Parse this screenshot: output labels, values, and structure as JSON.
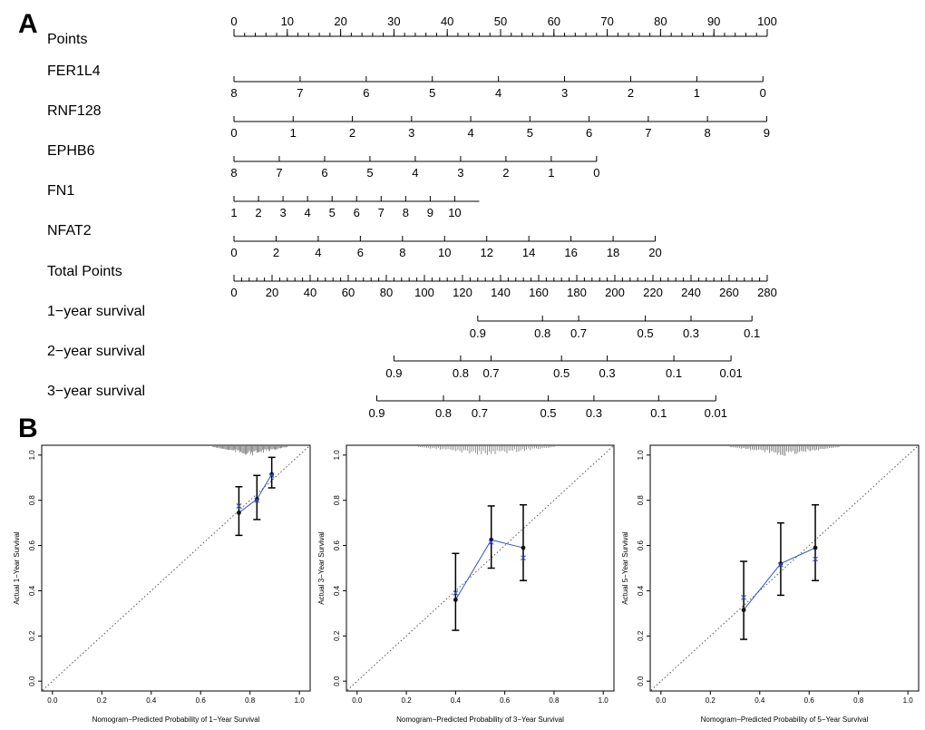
{
  "panel_labels": {
    "a": "A",
    "b": "B"
  },
  "chart_data": [
    {
      "type": "nomogram",
      "panel": "A",
      "points_scale": {
        "label": "Points",
        "min": 0,
        "max": 100,
        "major": [
          0,
          10,
          20,
          30,
          40,
          50,
          60,
          70,
          80,
          90,
          100
        ],
        "minor_step": 2
      },
      "variables": [
        {
          "name": "FER1L4",
          "ticks": [
            "8",
            "7",
            "6",
            "5",
            "4",
            "3",
            "2",
            "1",
            "0"
          ],
          "points": [
            0,
            12.4,
            24.8,
            37.2,
            49.6,
            62,
            74.4,
            86.8,
            99.2
          ]
        },
        {
          "name": "RNF128",
          "ticks": [
            "0",
            "1",
            "2",
            "3",
            "4",
            "5",
            "6",
            "7",
            "8",
            "9"
          ],
          "points": [
            0,
            11.1,
            22.2,
            33.3,
            44.4,
            55.5,
            66.6,
            77.7,
            88.8,
            99.9
          ]
        },
        {
          "name": "EPHB6",
          "ticks": [
            "8",
            "7",
            "6",
            "5",
            "4",
            "3",
            "2",
            "1",
            "0"
          ],
          "points": [
            0,
            8.5,
            17,
            25.5,
            34,
            42.5,
            51,
            59.5,
            68
          ]
        },
        {
          "name": "FN1",
          "ticks": [
            "1",
            "2",
            "3",
            "4",
            "5",
            "6",
            "7",
            "8",
            "9",
            "10"
          ],
          "points": [
            0,
            4.6,
            9.2,
            13.8,
            18.4,
            23,
            27.6,
            32.2,
            36.8,
            41.4
          ],
          "axis_end": 46
        },
        {
          "name": "NFAT2",
          "ticks": [
            "0",
            "2",
            "4",
            "6",
            "8",
            "10",
            "12",
            "14",
            "16",
            "18",
            "20"
          ],
          "points": [
            0,
            7.9,
            15.8,
            23.7,
            31.6,
            39.5,
            47.4,
            55.3,
            63.2,
            71.1,
            79
          ]
        }
      ],
      "total_points": {
        "label": "Total Points",
        "min": 0,
        "max": 280,
        "major": [
          0,
          20,
          40,
          60,
          80,
          100,
          120,
          140,
          160,
          180,
          200,
          220,
          240,
          260,
          280
        ],
        "minor_step": 4
      },
      "survival_axes": [
        {
          "name": "1−year survival",
          "ticks": [
            "0.9",
            "0.8",
            "0.7",
            "0.5",
            "0.3",
            "0.1"
          ],
          "total_points": [
            128,
            162,
            181,
            216,
            240,
            272
          ]
        },
        {
          "name": "2−year survival",
          "ticks": [
            "0.9",
            "0.8",
            "0.7",
            "0.5",
            "0.3",
            "0.1",
            "0.01"
          ],
          "total_points": [
            84,
            119,
            135,
            172,
            196,
            231,
            261
          ]
        },
        {
          "name": "3−year survival",
          "ticks": [
            "0.9",
            "0.8",
            "0.7",
            "0.5",
            "0.3",
            "0.1",
            "0.01"
          ],
          "total_points": [
            75,
            110,
            129,
            165,
            189,
            223,
            253
          ]
        }
      ]
    },
    {
      "type": "calibration",
      "panel": "B1",
      "xlabel": "Nomogram−Predicted Probability of 1−Year Survival",
      "ylabel": "Actual 1−Year Survival",
      "xlim": [
        0,
        1
      ],
      "ylim": [
        0,
        1
      ],
      "x_ticks": [
        "0.0",
        "0.2",
        "0.4",
        "0.6",
        "0.8",
        "1.0"
      ],
      "y_ticks": [
        "0.0",
        "0.2",
        "0.4",
        "0.6",
        "0.8",
        "1.0"
      ],
      "points": [
        {
          "x": 0.755,
          "y": 0.745,
          "lower": 0.645,
          "upper": 0.86,
          "corrected": 0.775
        },
        {
          "x": 0.828,
          "y": 0.805,
          "lower": 0.715,
          "upper": 0.91,
          "corrected": 0.8
        },
        {
          "x": 0.888,
          "y": 0.915,
          "lower": 0.855,
          "upper": 0.99,
          "corrected": 0.91
        }
      ],
      "rug_range": [
        0.65,
        0.95
      ]
    },
    {
      "type": "calibration",
      "panel": "B2",
      "xlabel": "Nomogram−Predicted Probability of 3−Year Survival",
      "ylabel": "Actual 3−Year Survival",
      "xlim": [
        0,
        1
      ],
      "ylim": [
        0,
        1
      ],
      "x_ticks": [
        "0.0",
        "0.2",
        "0.4",
        "0.6",
        "0.8",
        "1.0"
      ],
      "y_ticks": [
        "0.0",
        "0.2",
        "0.4",
        "0.6",
        "0.8",
        "1.0"
      ],
      "points": [
        {
          "x": 0.4,
          "y": 0.36,
          "lower": 0.225,
          "upper": 0.565,
          "corrected": 0.39
        },
        {
          "x": 0.545,
          "y": 0.625,
          "lower": 0.5,
          "upper": 0.775,
          "corrected": 0.615
        },
        {
          "x": 0.675,
          "y": 0.59,
          "lower": 0.445,
          "upper": 0.78,
          "corrected": 0.545
        }
      ],
      "rug_range": [
        0.25,
        0.8
      ]
    },
    {
      "type": "calibration",
      "panel": "B3",
      "xlabel": "Nomogram−Predicted Probability of 5−Year Survival",
      "ylabel": "Actual 5−Year Survival",
      "xlim": [
        0,
        1
      ],
      "ylim": [
        0,
        1
      ],
      "x_ticks": [
        "0.0",
        "0.2",
        "0.4",
        "0.6",
        "0.8",
        "1.0"
      ],
      "y_ticks": [
        "0.0",
        "0.2",
        "0.4",
        "0.6",
        "0.8",
        "1.0"
      ],
      "points": [
        {
          "x": 0.335,
          "y": 0.315,
          "lower": 0.185,
          "upper": 0.53,
          "corrected": 0.37
        },
        {
          "x": 0.485,
          "y": 0.52,
          "lower": 0.38,
          "upper": 0.7,
          "corrected": 0.515
        },
        {
          "x": 0.625,
          "y": 0.59,
          "lower": 0.445,
          "upper": 0.78,
          "corrected": 0.54
        }
      ],
      "rug_range": [
        0.28,
        0.72
      ]
    }
  ]
}
